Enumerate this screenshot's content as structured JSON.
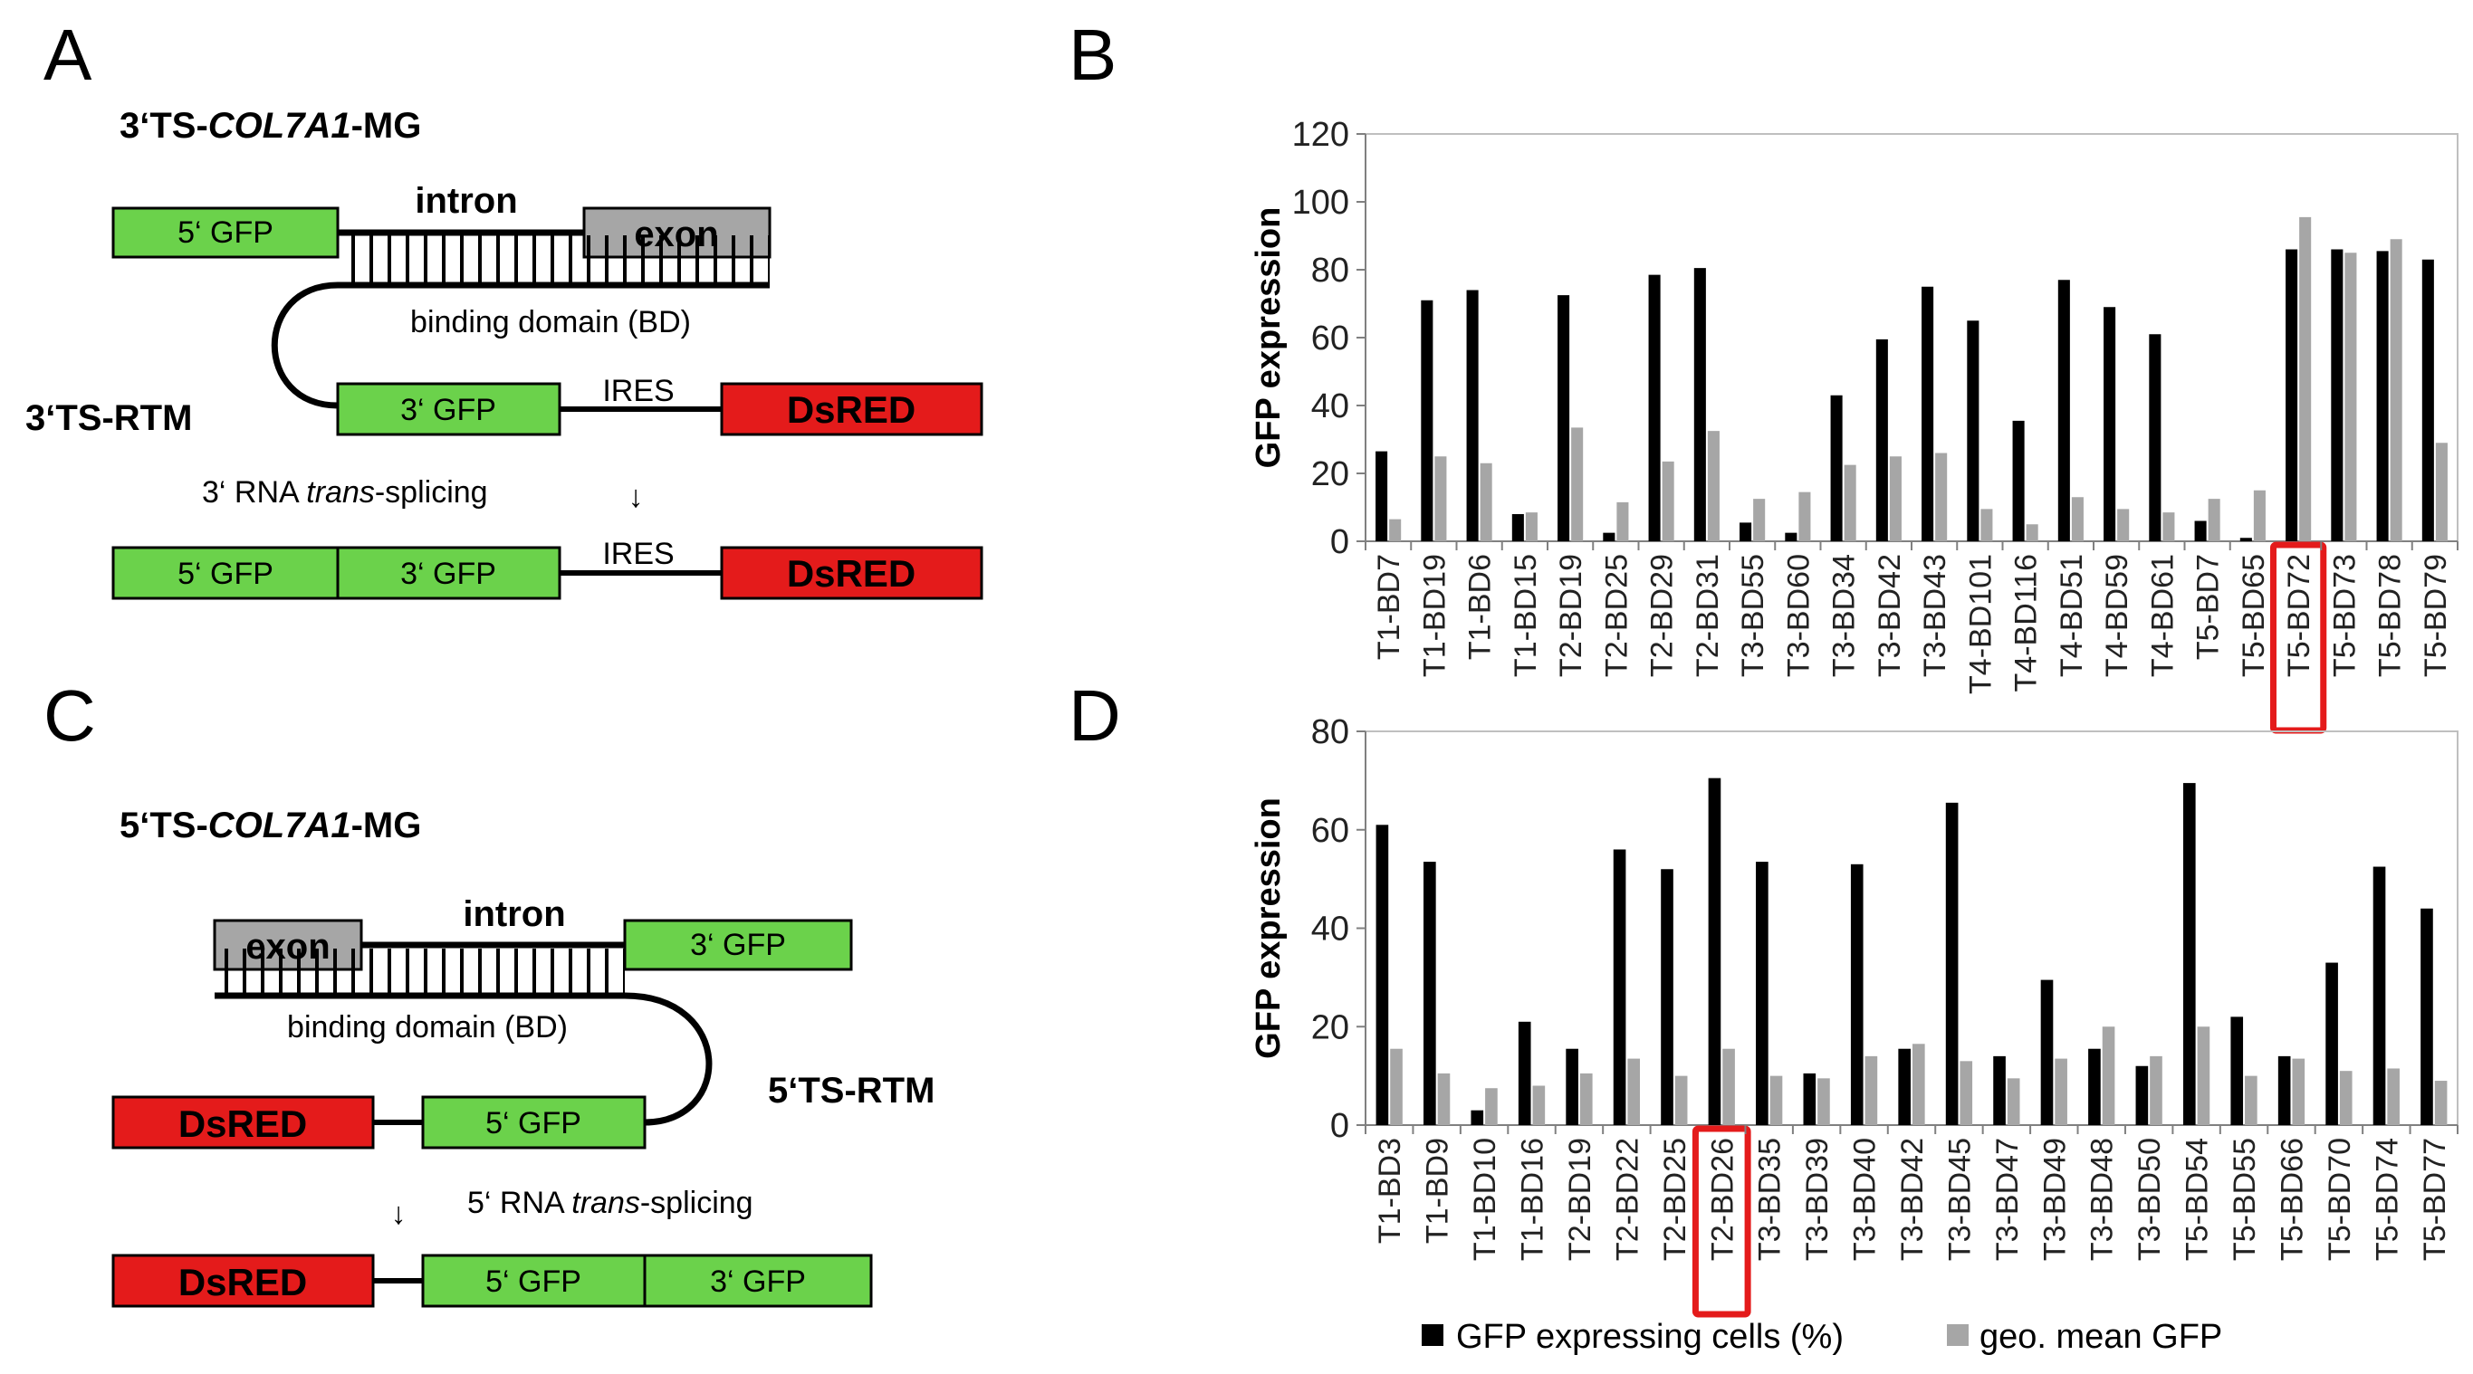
{
  "panels": {
    "a": {
      "letter": "A",
      "title_prefix": "3‘TS-",
      "title_gene": "COL7A1",
      "title_suffix": "-MG",
      "gfp5": "5‘ GFP",
      "intron": "intron",
      "exon": "exon",
      "binding": "binding domain (BD)",
      "rtm": "3‘TS-RTM",
      "gfp3": "3‘ GFP",
      "ires": "IRES",
      "dsred": "DsRED",
      "splice_prefix": "3‘ RNA ",
      "splice_italic": "trans",
      "splice_suffix": "-splicing",
      "arrow": "↓"
    },
    "c": {
      "letter": "C",
      "title_prefix": "5‘TS-",
      "title_gene": "COL7A1",
      "title_suffix": "-MG",
      "exon": "exon",
      "intron": "intron",
      "gfp3": "3‘ GFP",
      "binding": "binding domain (BD)",
      "rtm": "5‘TS-RTM",
      "dsred": "DsRED",
      "gfp5": "5‘ GFP",
      "splice_prefix": "5‘ RNA ",
      "splice_italic": "trans",
      "splice_suffix": "-splicing",
      "arrow": "↓"
    },
    "b": {
      "letter": "B"
    },
    "d": {
      "letter": "D"
    }
  },
  "colors": {
    "green": "#6bd24b",
    "red": "#e41b1b",
    "grey_box": "#a6a6a6",
    "series_black": "#000000",
    "series_grey": "#a6a6a6",
    "highlight": "#e41b1b"
  },
  "legend": {
    "black": "GFP expressing cells (%)",
    "grey": "geo. mean GFP"
  },
  "chart_data": [
    {
      "type": "bar",
      "panel": "B",
      "ylabel": "GFP expression",
      "ylim": [
        0,
        120
      ],
      "yticks": [
        0,
        20,
        40,
        60,
        80,
        100,
        120
      ],
      "highlight": "T5-BD72",
      "categories": [
        "T1-BD7",
        "T1-BD19",
        "T1-BD6",
        "T1-BD15",
        "T2-BD19",
        "T2-BD25",
        "T2-BD29",
        "T2-BD31",
        "T3-BD55",
        "T3-BD60",
        "T3-BD34",
        "T3-BD42",
        "T3-BD43",
        "T4-BD101",
        "T4-BD116",
        "T4-BD51",
        "T4-BD59",
        "T4-BD61",
        "T5-BD7",
        "T5-BD65",
        "T5-BD72",
        "T5-BD73",
        "T5-BD78",
        "T5-BD79"
      ],
      "series": [
        {
          "name": "GFP expressing cells (%)",
          "values": [
            26.5,
            71,
            74,
            8,
            72.5,
            2.5,
            78.5,
            80.5,
            5.5,
            2.5,
            43,
            59.5,
            75,
            65,
            35.5,
            77,
            69,
            61,
            6,
            1,
            86,
            86,
            85.5,
            83
          ]
        },
        {
          "name": "geo. mean GFP",
          "values": [
            6.5,
            25,
            23,
            8.5,
            33.5,
            11.5,
            23.5,
            32.5,
            12.5,
            14.5,
            22.5,
            25,
            26,
            9.5,
            5,
            13,
            9.5,
            8.5,
            12.5,
            15,
            95.5,
            85,
            89,
            29
          ]
        }
      ]
    },
    {
      "type": "bar",
      "panel": "D",
      "ylabel": "GFP expression",
      "ylim": [
        0,
        80
      ],
      "yticks": [
        0,
        20,
        40,
        60,
        80
      ],
      "highlight": "T2-BD26",
      "categories": [
        "T1-BD3",
        "T1-BD9",
        "T1-BD10",
        "T1-BD16",
        "T2-BD19",
        "T2-BD22",
        "T2-BD25",
        "T2-BD26",
        "T3-BD35",
        "T3-BD39",
        "T3-BD40",
        "T3-BD42",
        "T3-BD45",
        "T3-BD47",
        "T3-BD49",
        "T3-BD48",
        "T3-BD50",
        "T5-BD54",
        "T5-BD55",
        "T5-BD66",
        "T5-BD70",
        "T5-BD74",
        "T5-BD77"
      ],
      "series": [
        {
          "name": "GFP expressing cells (%)",
          "values": [
            61,
            53.5,
            3,
            21,
            15.5,
            56,
            52,
            70.5,
            53.5,
            10.5,
            53,
            15.5,
            65.5,
            14,
            29.5,
            15.5,
            12,
            69.5,
            22,
            14,
            33,
            52.5,
            44
          ]
        },
        {
          "name": "geo. mean GFP",
          "values": [
            15.5,
            10.5,
            7.5,
            8,
            10.5,
            13.5,
            10,
            15.5,
            10,
            9.5,
            14,
            16.5,
            13,
            9.5,
            13.5,
            20,
            14,
            20,
            10,
            13.5,
            11,
            11.5,
            9
          ]
        }
      ]
    }
  ]
}
